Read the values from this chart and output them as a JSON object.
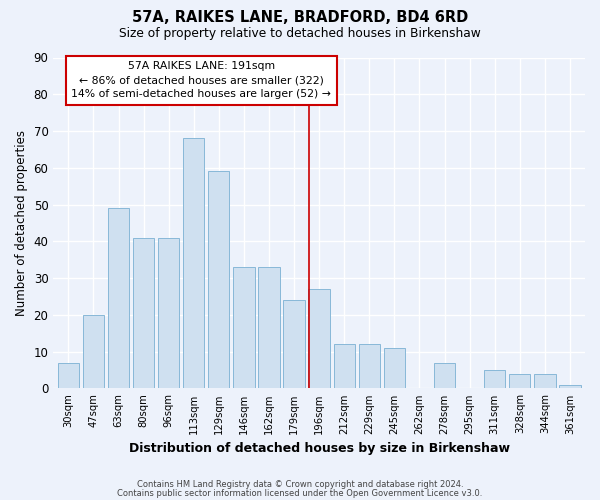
{
  "title": "57A, RAIKES LANE, BRADFORD, BD4 6RD",
  "subtitle": "Size of property relative to detached houses in Birkenshaw",
  "xlabel": "Distribution of detached houses by size in Birkenshaw",
  "ylabel": "Number of detached properties",
  "footnote1": "Contains HM Land Registry data © Crown copyright and database right 2024.",
  "footnote2": "Contains public sector information licensed under the Open Government Licence v3.0.",
  "categories": [
    "30sqm",
    "47sqm",
    "63sqm",
    "80sqm",
    "96sqm",
    "113sqm",
    "129sqm",
    "146sqm",
    "162sqm",
    "179sqm",
    "196sqm",
    "212sqm",
    "229sqm",
    "245sqm",
    "262sqm",
    "278sqm",
    "295sqm",
    "311sqm",
    "328sqm",
    "344sqm",
    "361sqm"
  ],
  "values": [
    7,
    20,
    49,
    41,
    41,
    68,
    59,
    33,
    33,
    24,
    27,
    12,
    12,
    11,
    0,
    7,
    0,
    5,
    4,
    4,
    1
  ],
  "bar_color": "#cfe0f0",
  "bar_edge_color": "#88b8d8",
  "background_color": "#edf2fb",
  "grid_color": "#ffffff",
  "vline_x_index": 10,
  "vline_color": "#cc0000",
  "annotation_text": "57A RAIKES LANE: 191sqm\n← 86% of detached houses are smaller (322)\n14% of semi-detached houses are larger (52) →",
  "annotation_box_color": "#ffffff",
  "annotation_box_edge": "#cc0000",
  "ylim": [
    0,
    90
  ],
  "yticks": [
    0,
    10,
    20,
    30,
    40,
    50,
    60,
    70,
    80,
    90
  ]
}
